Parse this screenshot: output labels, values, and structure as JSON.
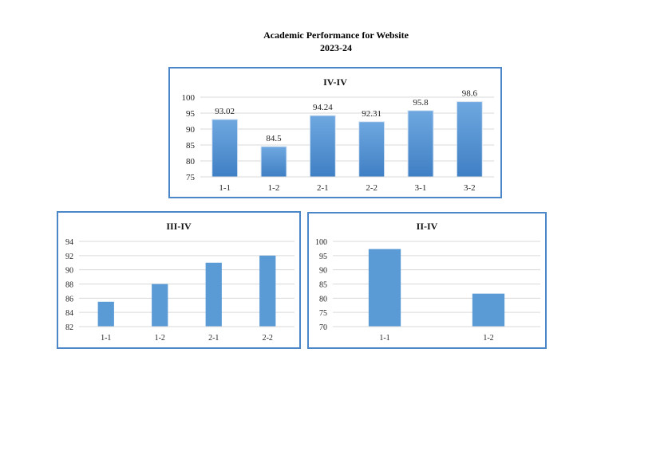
{
  "page": {
    "title": "Academic Performance for Website",
    "subtitle": "2023-24"
  },
  "chart_data": [
    {
      "type": "bar",
      "title": "IV-IV",
      "categories": [
        "1-1",
        "1-2",
        "2-1",
        "2-2",
        "3-1",
        "3-2"
      ],
      "values": [
        93.02,
        84.5,
        94.24,
        92.31,
        95.8,
        98.6
      ],
      "data_labels": [
        "93.02",
        "84.5",
        "94.24",
        "92.31",
        "95.8",
        "98.6"
      ],
      "ylim": [
        75,
        100
      ],
      "yticks": [
        75,
        80,
        85,
        90,
        95,
        100
      ],
      "grid": true,
      "bar_style": "gradient",
      "colors": {
        "bar_top": "#6fa8e0",
        "bar_bottom": "#3f7fc4",
        "border": "#4a86c8"
      }
    },
    {
      "type": "bar",
      "title": "III-IV",
      "categories": [
        "1-1",
        "1-2",
        "2-1",
        "2-2"
      ],
      "values": [
        85.5,
        88,
        91,
        92
      ],
      "ylim": [
        82,
        94
      ],
      "yticks": [
        82,
        84,
        86,
        88,
        90,
        92,
        94
      ],
      "grid": true,
      "bar_style": "flat",
      "colors": {
        "bar": "#5b9bd5",
        "border": "#4a86c8"
      }
    },
    {
      "type": "bar",
      "title": "II-IV",
      "categories": [
        "1-1",
        "1-2"
      ],
      "values": [
        97.3,
        81.6
      ],
      "ylim": [
        70,
        100
      ],
      "yticks": [
        70,
        75,
        80,
        85,
        90,
        95,
        100
      ],
      "grid": true,
      "bar_style": "flat",
      "colors": {
        "bar": "#5b9bd5",
        "border": "#4a86c8"
      }
    }
  ]
}
